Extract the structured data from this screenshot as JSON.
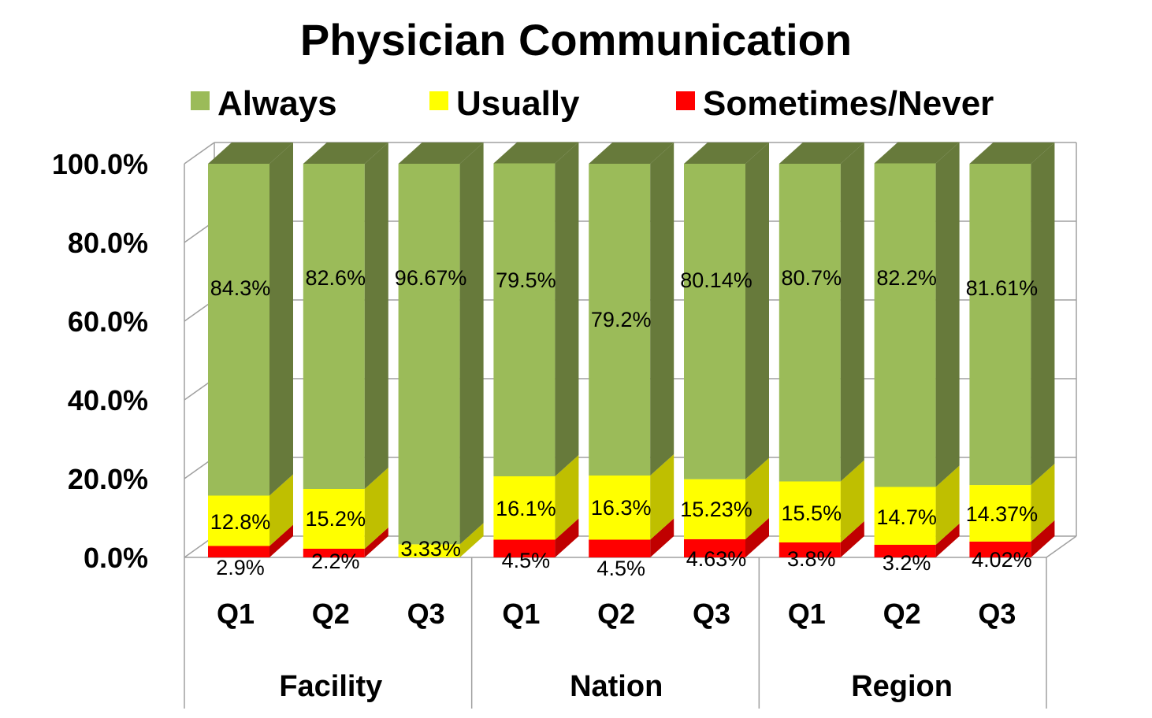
{
  "chart_data": {
    "type": "bar",
    "stacked": true,
    "three_d": true,
    "title": "Physician Communication",
    "legend_position": "top",
    "grid": true,
    "ylim": [
      0,
      100
    ],
    "y_ticks": [
      "0.0%",
      "20.0%",
      "40.0%",
      "60.0%",
      "80.0%",
      "100.0%"
    ],
    "y_tick_values": [
      0,
      20,
      40,
      60,
      80,
      100
    ],
    "categories": [
      "Q1",
      "Q2",
      "Q3",
      "Q1",
      "Q2",
      "Q3",
      "Q1",
      "Q2",
      "Q3"
    ],
    "groups": [
      {
        "label": "Facility",
        "count": 3
      },
      {
        "label": "Nation",
        "count": 3
      },
      {
        "label": "Region",
        "count": 3
      }
    ],
    "series": [
      {
        "name": "Sometimes/Never",
        "color": "#ff0000",
        "side_color": "#c00000",
        "values": [
          2.9,
          2.2,
          0,
          4.5,
          4.5,
          4.63,
          3.8,
          3.2,
          4.02
        ],
        "labels": [
          "2.9%",
          "2.2%",
          "",
          "4.5%",
          "4.5%",
          "4.63%",
          "3.8%",
          "3.2%",
          "4.02%"
        ]
      },
      {
        "name": "Usually",
        "color": "#ffff00",
        "side_color": "#bfbf00",
        "values": [
          12.8,
          15.2,
          3.33,
          16.1,
          16.3,
          15.23,
          15.5,
          14.7,
          14.37
        ],
        "labels": [
          "12.8%",
          "15.2%",
          "3.33%",
          "16.1%",
          "16.3%",
          "15.23%",
          "15.5%",
          "14.7%",
          "14.37%"
        ]
      },
      {
        "name": "Always",
        "color": "#9bbb59",
        "side_color": "#677a3b",
        "values": [
          84.3,
          82.6,
          96.67,
          79.5,
          79.2,
          80.14,
          80.7,
          82.2,
          81.61
        ],
        "labels": [
          "84.3%",
          "82.6%",
          "96.67%",
          "79.5%",
          "79.2%",
          "80.14%",
          "80.7%",
          "82.2%",
          "81.61%"
        ]
      }
    ],
    "legend_order": [
      "Always",
      "Usually",
      "Sometimes/Never"
    ]
  }
}
